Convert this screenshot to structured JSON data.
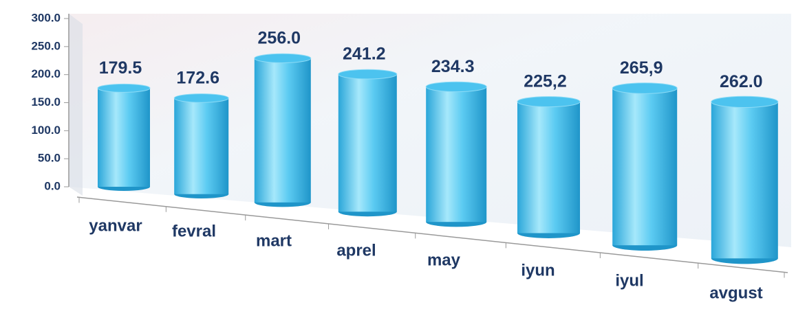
{
  "chart_data": {
    "type": "bar3d",
    "categories": [
      "yanvar",
      "fevral",
      "mart",
      "aprel",
      "may",
      "iyun",
      "iyul",
      "avgust"
    ],
    "values": [
      179.5,
      172.6,
      256.0,
      241.2,
      234.3,
      225.2,
      265.9,
      262.0
    ],
    "value_labels": [
      "179.5",
      "172.6",
      "256.0",
      "241.2",
      "234.3",
      "225,2",
      "265,9",
      "262.0"
    ],
    "color": "#4cc3ef",
    "ylim": [
      0,
      300
    ],
    "yticks": [
      {
        "value": 0,
        "label": "0.0"
      },
      {
        "value": 50,
        "label": "50.0"
      },
      {
        "value": 100,
        "label": "100.0"
      },
      {
        "value": 150,
        "label": "150.0"
      },
      {
        "value": 200,
        "label": "200.0"
      },
      {
        "value": 250,
        "label": "250.0"
      },
      {
        "value": 300,
        "label": "300.0"
      }
    ]
  }
}
